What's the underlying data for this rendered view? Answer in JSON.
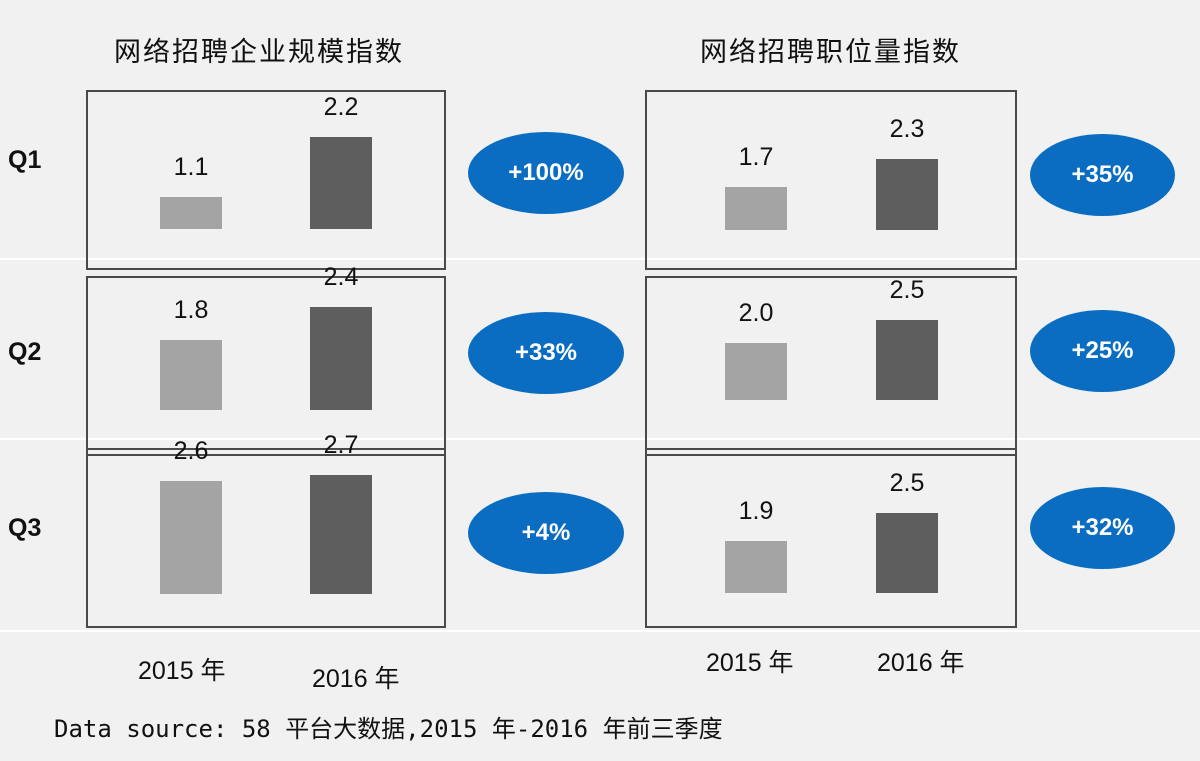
{
  "colors": {
    "background": "#f1f1f1",
    "bar_2015": "#a4a4a4",
    "bar_2016": "#5e5e5e",
    "bubble": "#0b6dc2",
    "panel_border": "#4a4a4a"
  },
  "chart_data": [
    {
      "type": "bar",
      "title": "网络招聘企业规模指数",
      "xlabel": "",
      "ylabel": "",
      "categories": [
        "Q1",
        "Q2",
        "Q3"
      ],
      "series": [
        {
          "name": "2015 年",
          "values": [
            1.1,
            1.8,
            2.6
          ]
        },
        {
          "name": "2016 年",
          "values": [
            2.2,
            2.4,
            2.7
          ]
        }
      ],
      "growth_labels": [
        "+100%",
        "+33%",
        "+4%"
      ],
      "x_tick_labels": [
        "2015 年",
        "2016 年"
      ]
    },
    {
      "type": "bar",
      "title": "网络招聘职位量指数",
      "xlabel": "",
      "ylabel": "",
      "categories": [
        "Q1",
        "Q2",
        "Q3"
      ],
      "series": [
        {
          "name": "2015 年",
          "values": [
            1.7,
            2.0,
            1.9
          ]
        },
        {
          "name": "2016 年",
          "values": [
            2.3,
            2.5,
            2.5
          ]
        }
      ],
      "growth_labels": [
        "+35%",
        "+25%",
        "+32%"
      ],
      "x_tick_labels": [
        "2015 年",
        "2016 年"
      ]
    }
  ],
  "footer": {
    "source": "Data source: 58 平台大数据,2015 年-2016 年前三季度"
  }
}
